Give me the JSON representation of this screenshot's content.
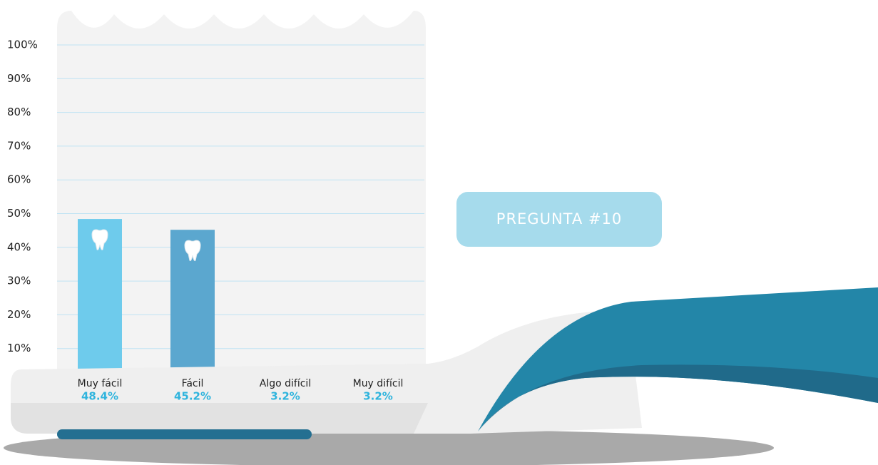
{
  "chart_data": {
    "type": "bar",
    "annotation": "PREGUNTA #10",
    "categories": [
      "Muy fácil",
      "Fácil",
      "Algo difícil",
      "Muy difícil"
    ],
    "values": [
      48.4,
      45.2,
      3.2,
      3.2
    ],
    "value_labels": [
      "48.4%",
      "45.2%",
      "3.2%",
      "3.2%"
    ],
    "colors": [
      "#6ecbec",
      "#5ba7cf",
      "#5ba7cf",
      "#5ba7cf"
    ],
    "ylim": [
      0,
      100
    ],
    "yticks": [
      {
        "value": 10,
        "label": "10%"
      },
      {
        "value": 20,
        "label": "20%"
      },
      {
        "value": 30,
        "label": "30%"
      },
      {
        "value": 40,
        "label": "40%"
      },
      {
        "value": 50,
        "label": "50%"
      },
      {
        "value": 60,
        "label": "60%"
      },
      {
        "value": 70,
        "label": "70%"
      },
      {
        "value": 80,
        "label": "80%"
      },
      {
        "value": 90,
        "label": "90%"
      },
      {
        "value": 100,
        "label": "100%"
      }
    ],
    "grid": true
  }
}
